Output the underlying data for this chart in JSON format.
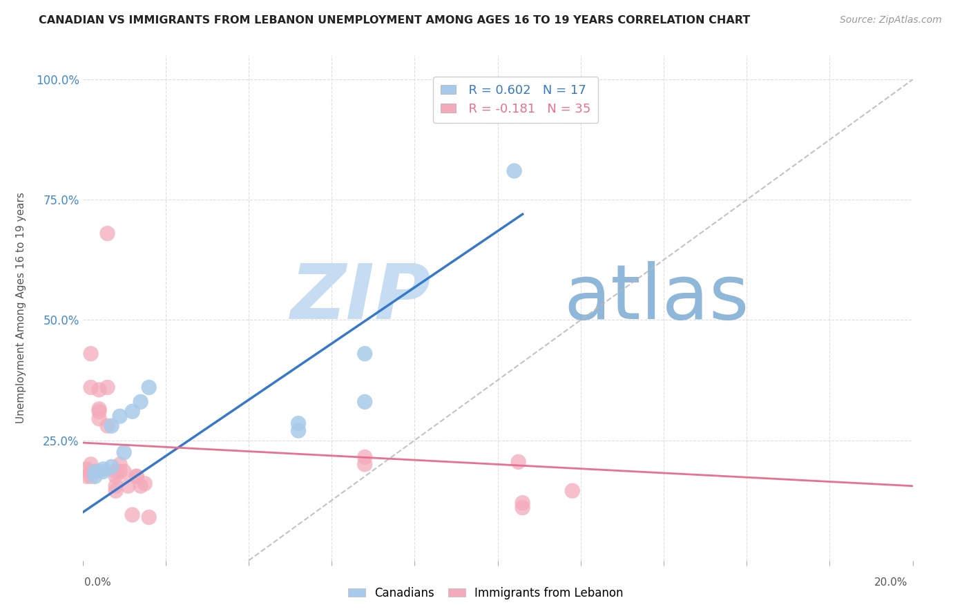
{
  "title": "CANADIAN VS IMMIGRANTS FROM LEBANON UNEMPLOYMENT AMONG AGES 16 TO 19 YEARS CORRELATION CHART",
  "source": "Source: ZipAtlas.com",
  "ylabel": "Unemployment Among Ages 16 to 19 years",
  "legend_canadians_R": "R = 0.602",
  "legend_canadians_N": "N = 17",
  "legend_lebanon_R": "R = -0.181",
  "legend_lebanon_N": "N = 35",
  "canadians_color": "#A8CAEA",
  "lebanon_color": "#F4AABB",
  "canadians_line_color": "#3878C8",
  "lebanon_line_color": "#E87090",
  "diagonal_line_color": "#B8B8B8",
  "watermark_zip": "ZIP",
  "watermark_atlas": "atlas",
  "canadians_x": [
    0.003,
    0.003,
    0.005,
    0.005,
    0.007,
    0.007,
    0.009,
    0.01,
    0.012,
    0.014,
    0.016,
    0.068,
    0.104,
    0.106,
    0.068,
    0.052,
    0.052
  ],
  "canadians_y": [
    0.175,
    0.185,
    0.185,
    0.19,
    0.195,
    0.28,
    0.3,
    0.225,
    0.31,
    0.33,
    0.36,
    0.33,
    0.81,
    0.97,
    0.43,
    0.285,
    0.27
  ],
  "lebanon_x": [
    0.001,
    0.001,
    0.002,
    0.002,
    0.002,
    0.002,
    0.002,
    0.003,
    0.004,
    0.004,
    0.004,
    0.004,
    0.006,
    0.006,
    0.006,
    0.008,
    0.008,
    0.008,
    0.008,
    0.009,
    0.009,
    0.01,
    0.011,
    0.012,
    0.013,
    0.013,
    0.014,
    0.015,
    0.016,
    0.068,
    0.068,
    0.106,
    0.106,
    0.105,
    0.118
  ],
  "lebanon_y": [
    0.175,
    0.19,
    0.175,
    0.185,
    0.2,
    0.36,
    0.43,
    0.185,
    0.295,
    0.31,
    0.315,
    0.355,
    0.28,
    0.36,
    0.68,
    0.175,
    0.185,
    0.145,
    0.155,
    0.185,
    0.2,
    0.185,
    0.155,
    0.095,
    0.175,
    0.175,
    0.155,
    0.16,
    0.09,
    0.2,
    0.215,
    0.11,
    0.12,
    0.205,
    0.145
  ],
  "xmin": 0.0,
  "xmax": 0.2,
  "ymin": 0.0,
  "ymax": 1.05,
  "background_color": "#FFFFFF",
  "grid_color": "#DDDDDD",
  "canadians_line_x0": 0.0,
  "canadians_line_y0": 0.1,
  "canadians_line_x1": 0.106,
  "canadians_line_y1": 0.72,
  "lebanon_line_x0": 0.0,
  "lebanon_line_y0": 0.245,
  "lebanon_line_x1": 0.2,
  "lebanon_line_y1": 0.155
}
